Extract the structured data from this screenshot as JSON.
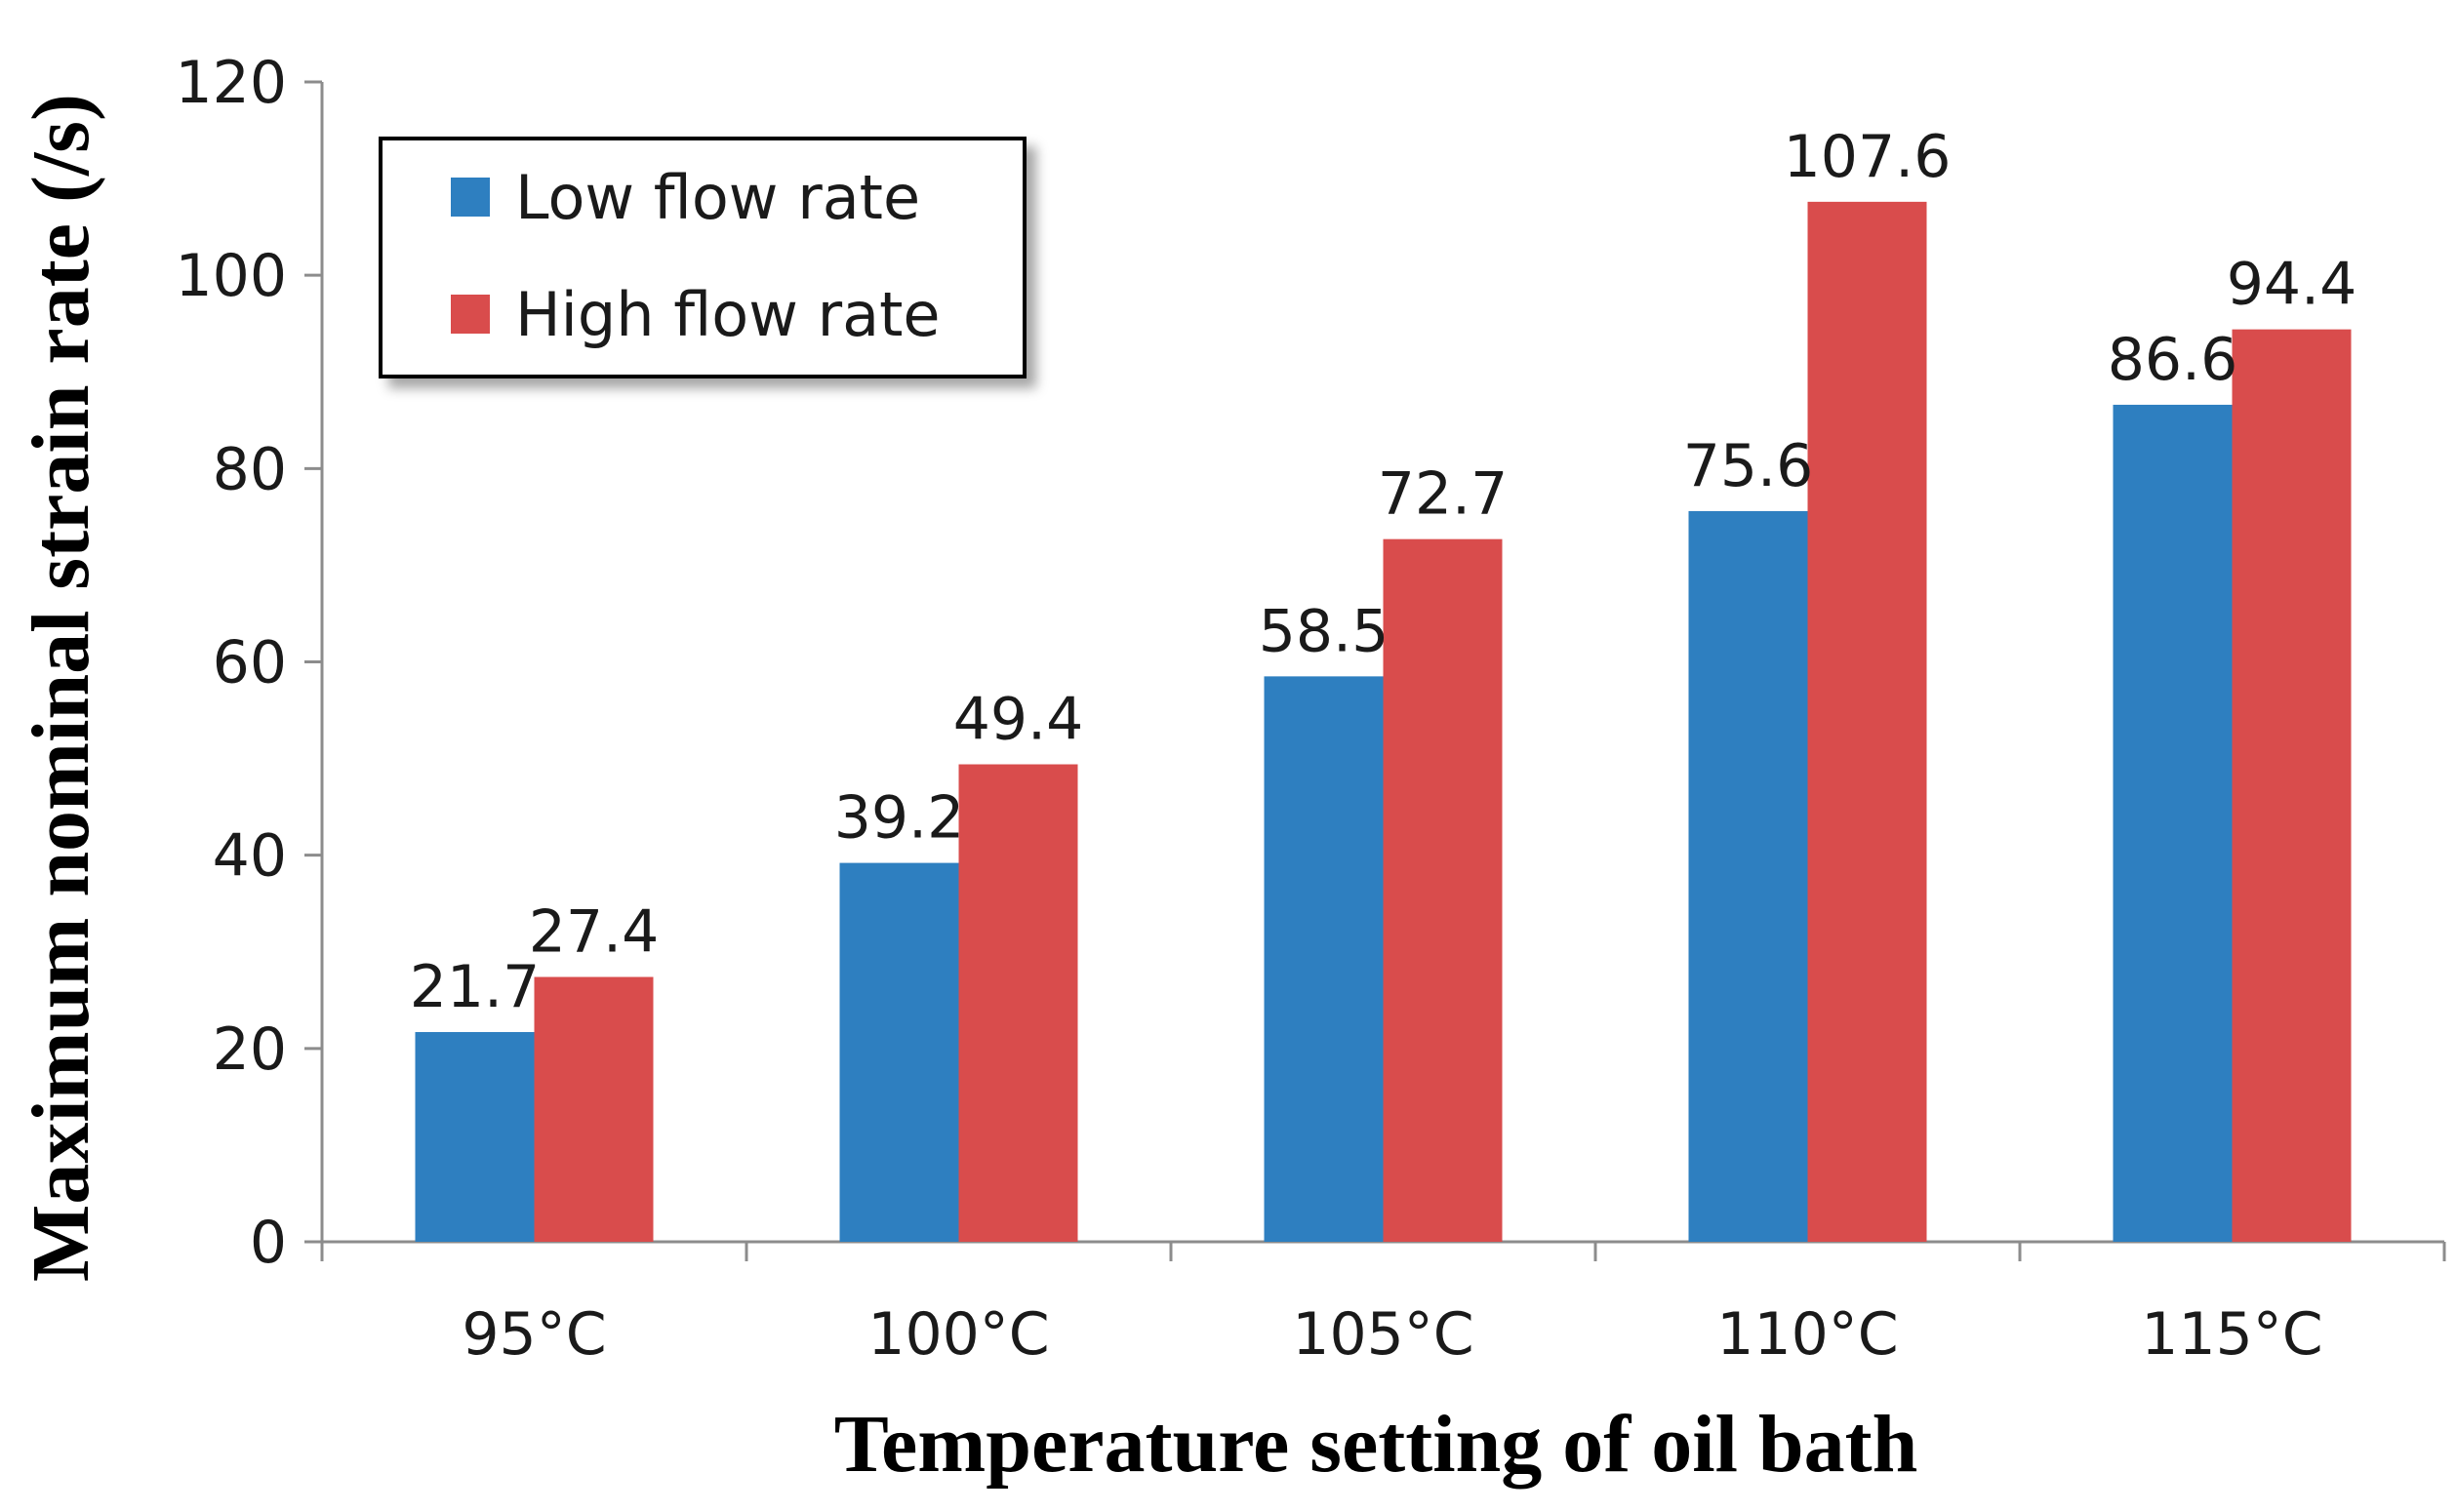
{
  "chart_data": {
    "type": "bar",
    "title": "",
    "xlabel": "Temperature setting of oil bath",
    "ylabel": "Maximum nominal strain rate (/s)",
    "categories": [
      "95°C",
      "100°C",
      "105°C",
      "110°C",
      "115°C"
    ],
    "series": [
      {
        "name": "Low flow rate",
        "color": "#2e7fc0",
        "values": [
          21.7,
          39.2,
          58.5,
          75.6,
          86.6
        ]
      },
      {
        "name": "High flow rate",
        "color": "#d94c4c",
        "values": [
          27.4,
          49.4,
          72.7,
          107.6,
          94.4
        ]
      }
    ],
    "ylim": [
      0,
      120
    ],
    "yticks": [
      "0",
      "20",
      "40",
      "60",
      "80",
      "100",
      "120"
    ],
    "data_labels": {
      "low": [
        "21.7",
        "39.2",
        "58.5",
        "75.6",
        "86.6"
      ],
      "high": [
        "27.4",
        "49.4",
        "72.7",
        "107.6",
        "94.4"
      ]
    },
    "legend_position": "top-left",
    "grid": false
  }
}
